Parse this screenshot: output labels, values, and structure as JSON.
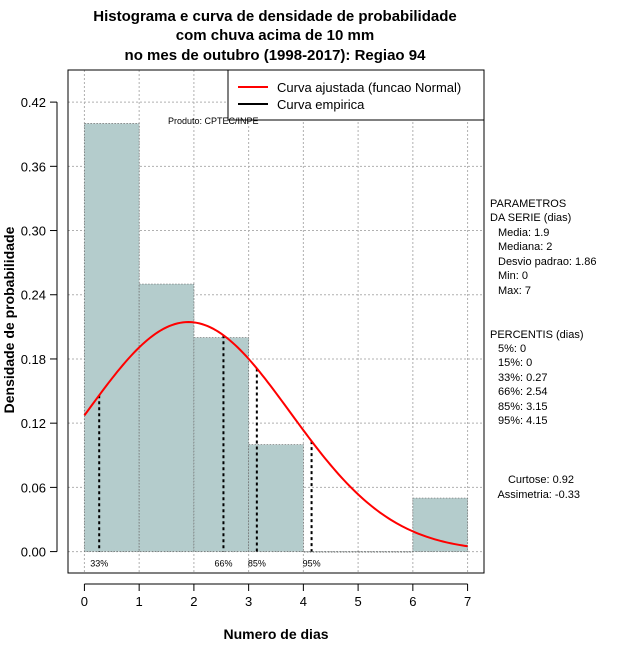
{
  "chart_data": {
    "type": "bar",
    "title_lines": [
      "Histograma e curva de densidade de probabilidade",
      "com chuva acima de 10 mm",
      "no mes de outubro (1998-2017): Regiao 94"
    ],
    "xlabel": "Numero de dias",
    "ylabel": "Densidade de probabilidade",
    "xlim": [
      -0.3,
      7.3
    ],
    "ylim": [
      -0.02,
      0.45
    ],
    "x_ticks": [
      "0",
      "1",
      "2",
      "3",
      "4",
      "5",
      "6",
      "7"
    ],
    "y_ticks": [
      "0.00",
      "0.06",
      "0.12",
      "0.18",
      "0.24",
      "0.30",
      "0.36",
      "0.42"
    ],
    "bins": [
      {
        "start": 0,
        "end": 1,
        "density": 0.4
      },
      {
        "start": 1,
        "end": 2,
        "density": 0.25
      },
      {
        "start": 2,
        "end": 3,
        "density": 0.2
      },
      {
        "start": 3,
        "end": 4,
        "density": 0.1
      },
      {
        "start": 4,
        "end": 5,
        "density": 0.0
      },
      {
        "start": 5,
        "end": 6,
        "density": 0.0
      },
      {
        "start": 6,
        "end": 7,
        "density": 0.05
      }
    ],
    "normal_fit": {
      "mean": 1.9,
      "sd": 1.86,
      "x_from": 0,
      "x_to": 7
    },
    "bar_color": "#b4cccc",
    "curve_color": "#ff0000",
    "percentile_lines": [
      {
        "x": 0.27,
        "label": "33%"
      },
      {
        "x": 2.54,
        "label": "66%"
      },
      {
        "x": 3.15,
        "label": "85%"
      },
      {
        "x": 4.15,
        "label": "95%"
      }
    ],
    "legend": [
      {
        "label": "Curva ajustada (funcao Normal)",
        "color": "#ff0000"
      },
      {
        "label": "Curva empirica",
        "color": "#000000"
      }
    ],
    "legend_position": "top-right",
    "credit": "Produto: CPTEC/INPE",
    "parameters": {
      "heading": [
        "PARAMETROS",
        "DA SERIE (dias)"
      ],
      "items": [
        "Media: 1.9",
        "Mediana: 2",
        "Desvio padrao: 1.86",
        "Min: 0",
        "Max: 7"
      ]
    },
    "percentis": {
      "heading": "PERCENTIS (dias)",
      "items": [
        "5%: 0",
        "15%: 0",
        "33%: 0.27",
        "66%: 2.54",
        "85%: 3.15",
        "95%: 4.15"
      ]
    },
    "shape_stats": [
      "Curtose: 0.92",
      "Assimetria: -0.33"
    ]
  }
}
